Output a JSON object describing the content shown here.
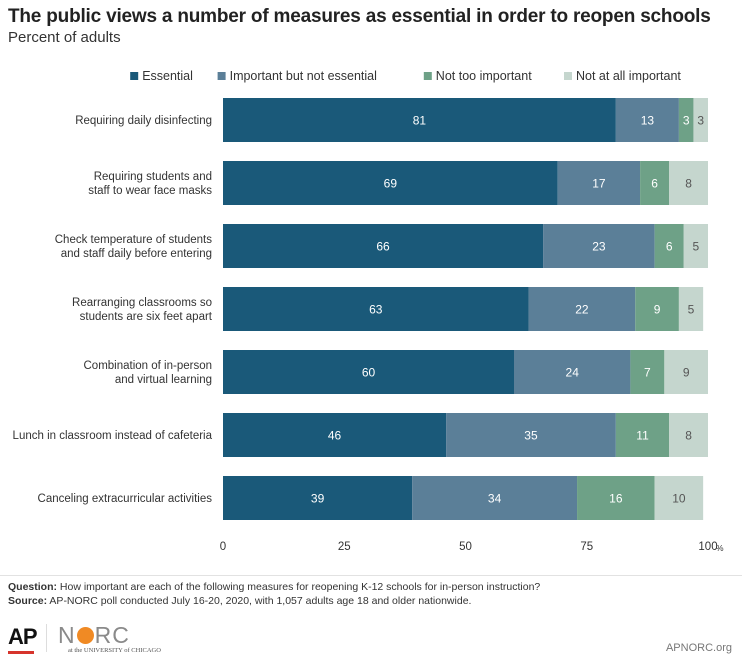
{
  "header": {
    "title": "The public views a number of measures as essential in order to reopen schools",
    "subtitle": "Percent of adults"
  },
  "colors": {
    "essential": "#1a5979",
    "important": "#5b7f98",
    "not_too": "#6ea187",
    "not_at_all": "#c5d6ce"
  },
  "chart_data": {
    "type": "bar",
    "orientation": "horizontal",
    "stacked": true,
    "categories": [
      [
        "Requiring daily disinfecting"
      ],
      [
        "Requiring students and",
        "staff to wear face masks"
      ],
      [
        "Check temperature of students",
        "and staff daily before entering"
      ],
      [
        "Rearranging classrooms so",
        "students are six feet apart"
      ],
      [
        "Combination of in-person",
        "and virtual learning"
      ],
      [
        "Lunch in classroom instead of cafeteria"
      ],
      [
        "Canceling extracurricular activities"
      ]
    ],
    "series": [
      {
        "name": "Essential",
        "color": "#1a5979",
        "values": [
          81,
          69,
          66,
          63,
          60,
          46,
          39
        ]
      },
      {
        "name": "Important but not essential",
        "color": "#5b7f98",
        "values": [
          13,
          17,
          23,
          22,
          24,
          35,
          34
        ]
      },
      {
        "name": "Not too important",
        "color": "#6ea187",
        "values": [
          3,
          6,
          6,
          9,
          7,
          11,
          16
        ]
      },
      {
        "name": "Not at all important",
        "color": "#c5d6ce",
        "values": [
          3,
          8,
          5,
          5,
          9,
          8,
          10
        ]
      }
    ],
    "x_ticks": [
      "0",
      "25",
      "50",
      "75",
      "100"
    ],
    "x_unit": "%",
    "xlim": [
      0,
      100
    ],
    "legend_position": "top-right",
    "grid": false
  },
  "footer": {
    "question_label": "Question:",
    "question_text": " How important are each of the following measures for reopening K-12 schools for in-person instruction?",
    "source_label": "Source:",
    "source_text": " AP-NORC poll conducted July 16-20, 2020, with 1,057 adults age 18 and older nationwide.",
    "logo_ap": "AP",
    "logo_norc_n": "N",
    "logo_norc_rest": "RC",
    "logo_uchicago": "at the UNIVERSITY of CHICAGO",
    "site": "APNORC.org"
  }
}
